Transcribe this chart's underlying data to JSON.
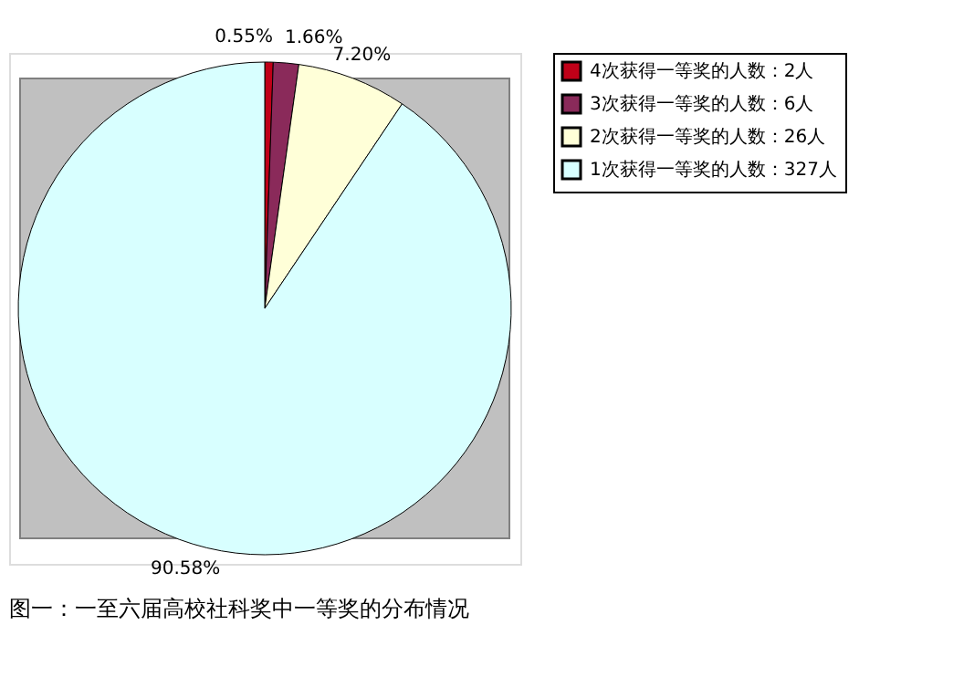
{
  "chart_data": {
    "type": "pie",
    "title": "图一：一至六届高校社科奖中一等奖的分布情况",
    "categories": [
      "4次获得一等奖的人数：2人",
      "3次获得一等奖的人数：6人",
      "2次获得一等奖的人数：26人",
      "1次获得一等奖的人数：327人"
    ],
    "values": [
      0.55,
      1.66,
      7.2,
      90.58
    ],
    "value_labels": [
      "0.55%",
      "1.66%",
      "7.20%",
      "90.58%"
    ],
    "colors": [
      "#c00018",
      "#8a2a5a",
      "#ffffd8",
      "#d8ffff"
    ],
    "legend": "right"
  }
}
